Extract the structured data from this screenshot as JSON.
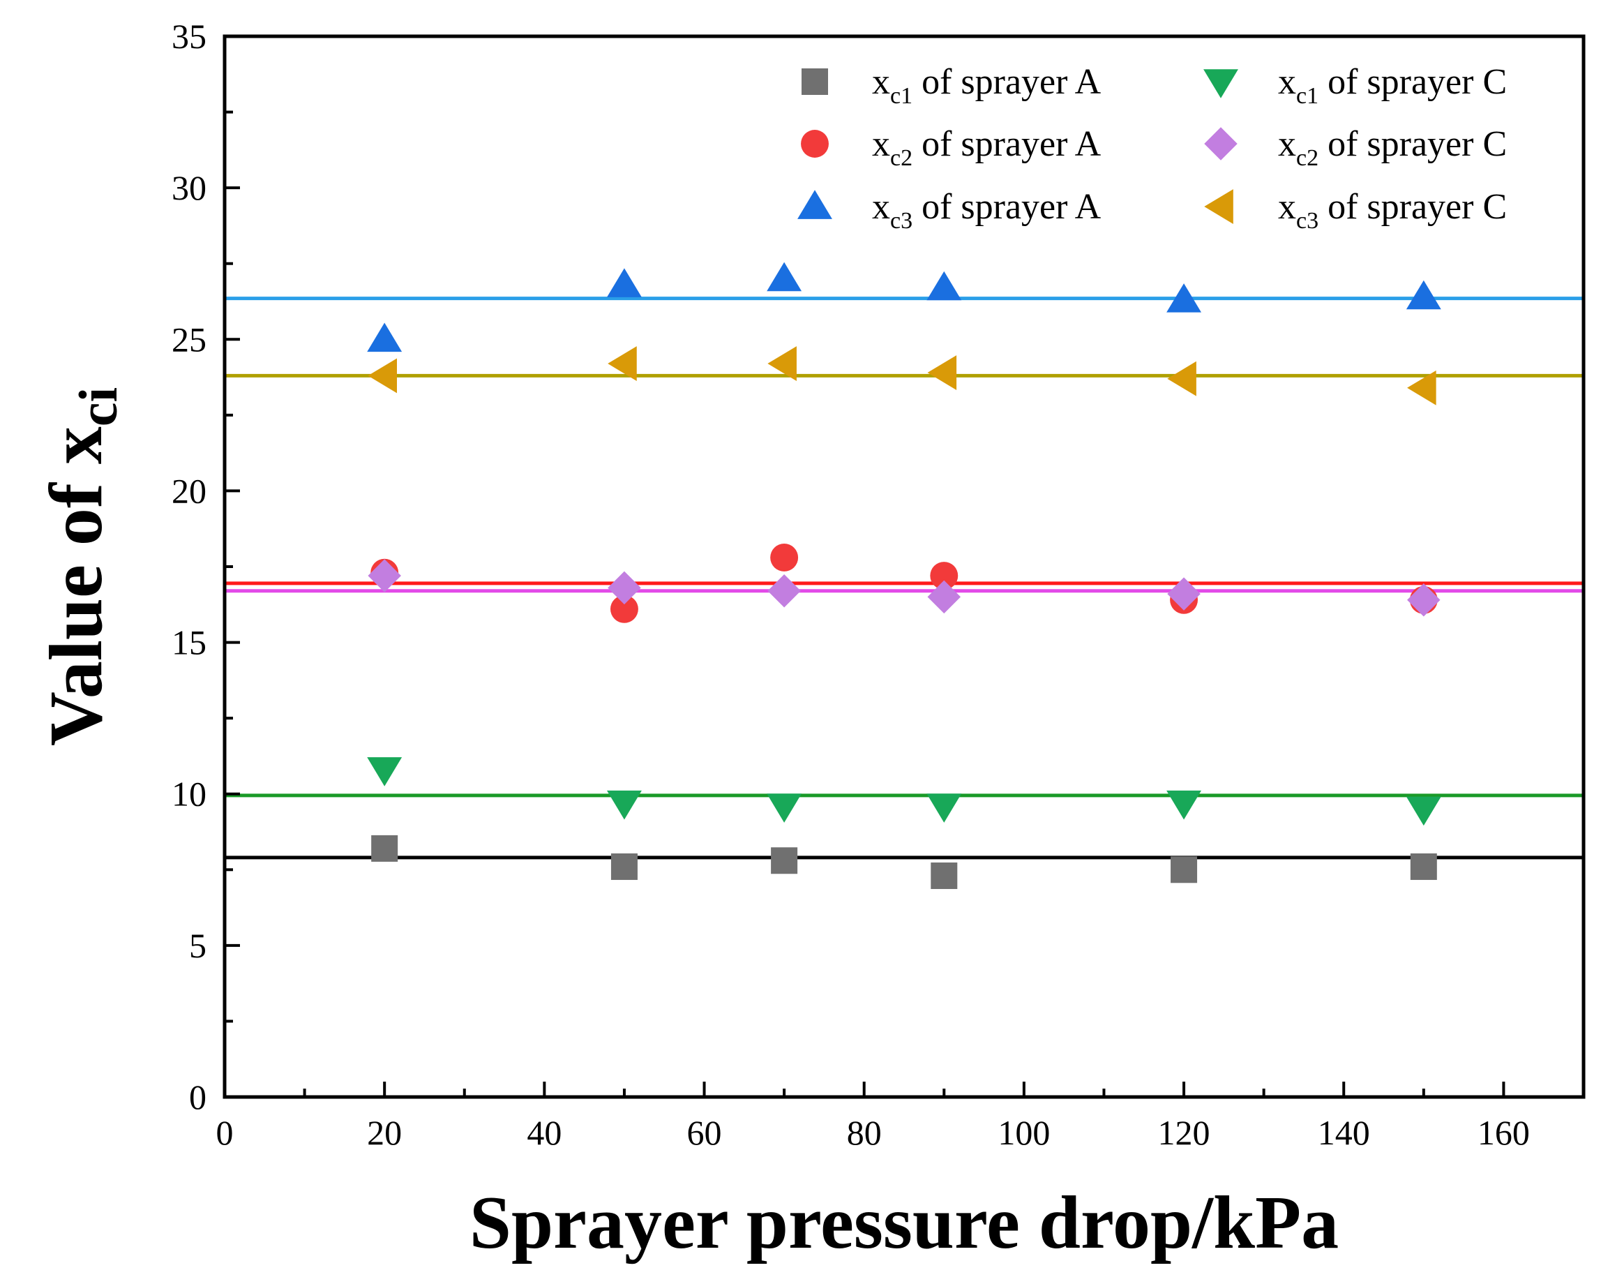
{
  "chart_data": {
    "type": "scatter",
    "title": "",
    "xlabel": "Sprayer pressure drop/kPa",
    "ylabel": {
      "main": "Value of x",
      "sub": "ci"
    },
    "xlim": [
      0,
      170
    ],
    "ylim": [
      0,
      35
    ],
    "xticks": [
      0,
      20,
      40,
      60,
      80,
      100,
      120,
      140,
      160
    ],
    "xtick_labels": [
      "0",
      "20",
      "40",
      "60",
      "80",
      "100",
      "120",
      "140",
      "160"
    ],
    "yticks": [
      0,
      5,
      10,
      15,
      20,
      25,
      30,
      35
    ],
    "ytick_labels": [
      "0",
      "5",
      "10",
      "15",
      "20",
      "25",
      "30",
      "35"
    ],
    "grid": false,
    "legend_position": "top-right",
    "x": [
      20,
      50,
      70,
      90,
      120,
      150
    ],
    "series": [
      {
        "id": "xc1_A",
        "legend": {
          "main": "x",
          "sub": "c1",
          "rest": " of sprayer A"
        },
        "marker": "square",
        "color": "#707070",
        "values": [
          8.2,
          7.6,
          7.8,
          7.3,
          7.5,
          7.6
        ],
        "fit_line": 7.9,
        "fit_color": "#000000"
      },
      {
        "id": "xc2_A",
        "legend": {
          "main": "x",
          "sub": "c2",
          "rest": " of sprayer A"
        },
        "marker": "circle",
        "color": "#f23a3a",
        "values": [
          17.3,
          16.1,
          17.8,
          17.2,
          16.4,
          16.4
        ],
        "fit_line": 16.95,
        "fit_color": "#ff1a1a"
      },
      {
        "id": "xc3_A",
        "legend": {
          "main": "x",
          "sub": "c3",
          "rest": " of sprayer A"
        },
        "marker": "triangle-up",
        "color": "#1a6fe0",
        "values": [
          25.0,
          26.8,
          27.0,
          26.7,
          26.3,
          26.4
        ],
        "fit_line": 26.35,
        "fit_color": "#2a9fe8"
      },
      {
        "id": "xc1_C",
        "legend": {
          "main": "x",
          "sub": "c1",
          "rest": " of sprayer C"
        },
        "marker": "triangle-down",
        "color": "#18a858",
        "values": [
          10.8,
          9.7,
          9.6,
          9.6,
          9.7,
          9.5
        ],
        "fit_line": 9.95,
        "fit_color": "#1a9a28"
      },
      {
        "id": "xc2_C",
        "legend": {
          "main": "x",
          "sub": "c2",
          "rest": " of sprayer C"
        },
        "marker": "diamond",
        "color": "#c27ee0",
        "values": [
          17.2,
          16.8,
          16.7,
          16.5,
          16.6,
          16.4
        ],
        "fit_line": 16.7,
        "fit_color": "#e24ae8"
      },
      {
        "id": "xc3_C",
        "legend": {
          "main": "x",
          "sub": "c3",
          "rest": " of sprayer C"
        },
        "marker": "triangle-left",
        "color": "#d99a08",
        "values": [
          23.8,
          24.2,
          24.2,
          23.9,
          23.7,
          23.4
        ],
        "fit_line": 23.8,
        "fit_color": "#b0a000"
      }
    ]
  }
}
